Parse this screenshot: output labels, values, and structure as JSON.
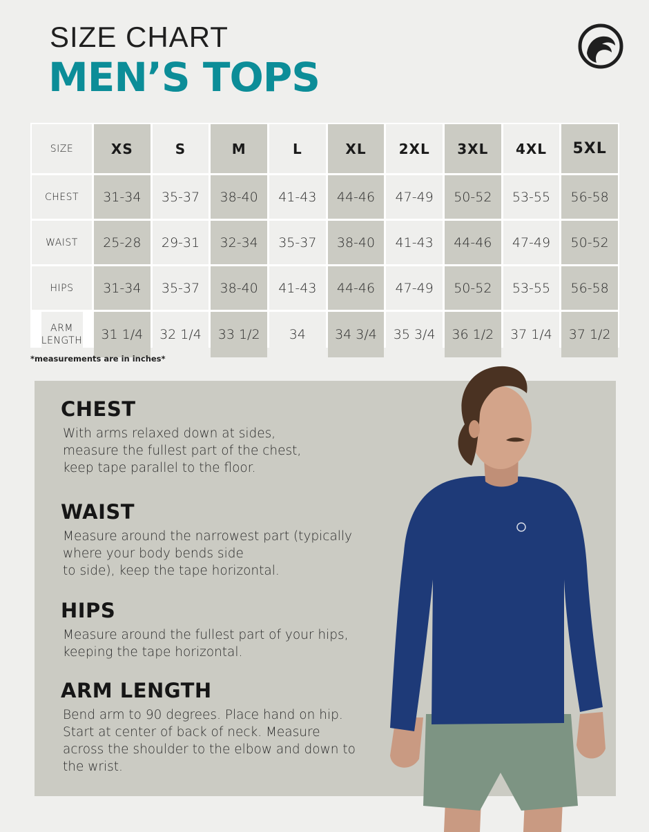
{
  "header": {
    "title_small": "SIZE CHART",
    "title_big": "MEN’S TOPS",
    "logo_icon": "wave-logo-icon"
  },
  "table": {
    "corner_label": "SIZE",
    "sizes": [
      "XS",
      "S",
      "M",
      "L",
      "XL",
      "2XL",
      "3XL",
      "4XL",
      "5XL"
    ],
    "rows": [
      {
        "label": "CHEST",
        "values": [
          "31-34",
          "35-37",
          "38-40",
          "41-43",
          "44-46",
          "47-49",
          "50-52",
          "53-55",
          "56-58"
        ]
      },
      {
        "label": "WAIST",
        "values": [
          "25-28",
          "29-31",
          "32-34",
          "35-37",
          "38-40",
          "41-43",
          "44-46",
          "47-49",
          "50-52"
        ]
      },
      {
        "label": "HIPS",
        "values": [
          "31-34",
          "35-37",
          "38-40",
          "41-43",
          "44-46",
          "47-49",
          "50-52",
          "53-55",
          "56-58"
        ]
      },
      {
        "label": "ARM LENGTH",
        "values": [
          "31 1/4",
          "32 1/4",
          "33 1/2",
          "34",
          "34 3/4",
          "35 3/4",
          "36 1/2",
          "37 1/4",
          "37 1/2"
        ]
      }
    ],
    "colors": {
      "light": "#efefed",
      "dark": "#cbcbc3"
    }
  },
  "note": "*measurements are in inches*",
  "guide": {
    "chest": {
      "title": "CHEST",
      "lines": [
        "With arms relaxed down at sides,",
        "measure the fullest part of the chest,",
        "keep tape parallel to the floor."
      ]
    },
    "waist": {
      "title": "WAIST",
      "lines": [
        "Measure around the narrowest part (typically",
        "where your body bends side",
        "to side), keep the tape horizontal."
      ]
    },
    "hips": {
      "title": "HIPS",
      "lines": [
        "Measure around the fullest part of your hips,",
        "keeping the tape horizontal."
      ]
    },
    "arm": {
      "title": "ARM LENGTH",
      "lines": [
        "Bend arm to 90 degrees.  Place hand on hip.",
        "Start at center of back of neck.  Measure",
        "across the shoulder to the elbow and down to",
        "the wrist."
      ]
    }
  },
  "colors": {
    "accent": "#0c8d98",
    "shirt": "#1e3a78",
    "shorts": "#7d9483",
    "panel": "#cbcbc3"
  }
}
